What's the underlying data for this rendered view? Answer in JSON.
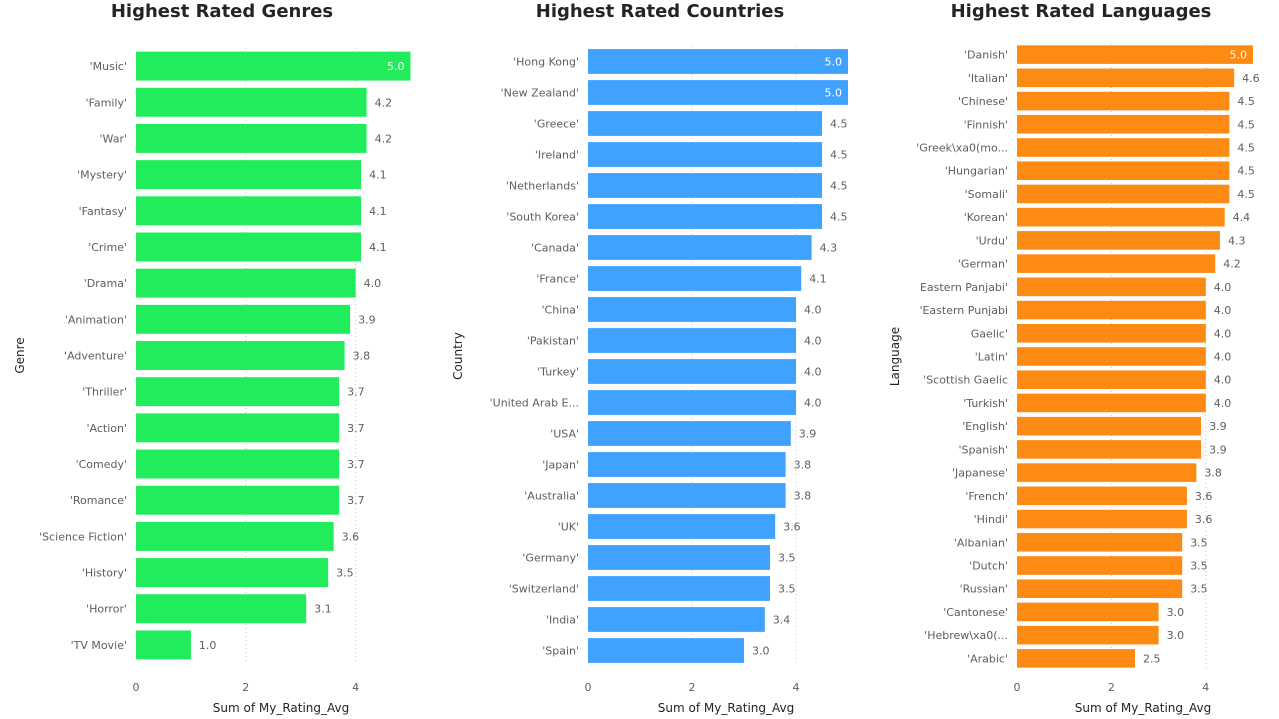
{
  "chart_data": [
    {
      "type": "bar",
      "orientation": "horizontal",
      "title": "Highest Rated Genres",
      "xlabel": "Sum of My_Rating_Avg",
      "ylabel": "Genre",
      "color": "#21ec5c",
      "xlim": [
        0,
        5
      ],
      "xticks": [
        0,
        2,
        4
      ],
      "grid": true,
      "categories": [
        "'Music'",
        "'Family'",
        "'War'",
        "'Mystery'",
        "'Fantasy'",
        "'Crime'",
        "'Drama'",
        "'Animation'",
        "'Adventure'",
        "'Thriller'",
        "'Action'",
        "'Comedy'",
        "'Romance'",
        "'Science Fiction'",
        "'History'",
        "'Horror'",
        "'TV Movie'"
      ],
      "values": [
        5.0,
        4.2,
        4.2,
        4.1,
        4.1,
        4.1,
        4.0,
        3.9,
        3.8,
        3.7,
        3.7,
        3.7,
        3.7,
        3.6,
        3.5,
        3.1,
        1.0
      ]
    },
    {
      "type": "bar",
      "orientation": "horizontal",
      "title": "Highest Rated Countries",
      "xlabel": "Sum of My_Rating_Avg",
      "ylabel": "Country",
      "color": "#3fa2fe",
      "xlim": [
        0,
        5
      ],
      "xticks": [
        0,
        2,
        4
      ],
      "grid": true,
      "categories": [
        "'Hong Kong'",
        "'New Zealand'",
        "'Greece'",
        "'Ireland'",
        "'Netherlands'",
        "'South Korea'",
        "'Canada'",
        "'France'",
        "'China'",
        "'Pakistan'",
        "'Turkey'",
        "'United Arab E...",
        "'USA'",
        "'Japan'",
        "'Australia'",
        "'UK'",
        "'Germany'",
        "'Switzerland'",
        "'India'",
        "'Spain'"
      ],
      "values": [
        5.0,
        5.0,
        4.5,
        4.5,
        4.5,
        4.5,
        4.3,
        4.1,
        4.0,
        4.0,
        4.0,
        4.0,
        3.9,
        3.8,
        3.8,
        3.6,
        3.5,
        3.5,
        3.4,
        3.0
      ]
    },
    {
      "type": "bar",
      "orientation": "horizontal",
      "title": "Highest Rated Languages",
      "xlabel": "Sum of My_Rating_Avg",
      "ylabel": "Language",
      "color": "#fd8a13",
      "xlim": [
        0,
        5
      ],
      "xticks": [
        0,
        2,
        4
      ],
      "grid": true,
      "categories": [
        "'Danish'",
        "'Italian'",
        "'Chinese'",
        "'Finnish'",
        "'Greek\\xa0(mo...",
        "'Hungarian'",
        "'Somali'",
        "'Korean'",
        "'Urdu'",
        "'German'",
        "Eastern Panjabi'",
        "'Eastern Punjabi",
        "Gaelic'",
        "'Latin'",
        "'Scottish Gaelic",
        "'Turkish'",
        "'English'",
        "'Spanish'",
        "'Japanese'",
        "'French'",
        "'Hindi'",
        "'Albanian'",
        "'Dutch'",
        "'Russian'",
        "'Cantonese'",
        "'Hebrew\\xa0(...",
        "'Arabic'"
      ],
      "values": [
        5.0,
        4.6,
        4.5,
        4.5,
        4.5,
        4.5,
        4.5,
        4.4,
        4.3,
        4.2,
        4.0,
        4.0,
        4.0,
        4.0,
        4.0,
        4.0,
        3.9,
        3.9,
        3.8,
        3.6,
        3.6,
        3.5,
        3.5,
        3.5,
        3.0,
        3.0,
        2.5
      ]
    }
  ]
}
